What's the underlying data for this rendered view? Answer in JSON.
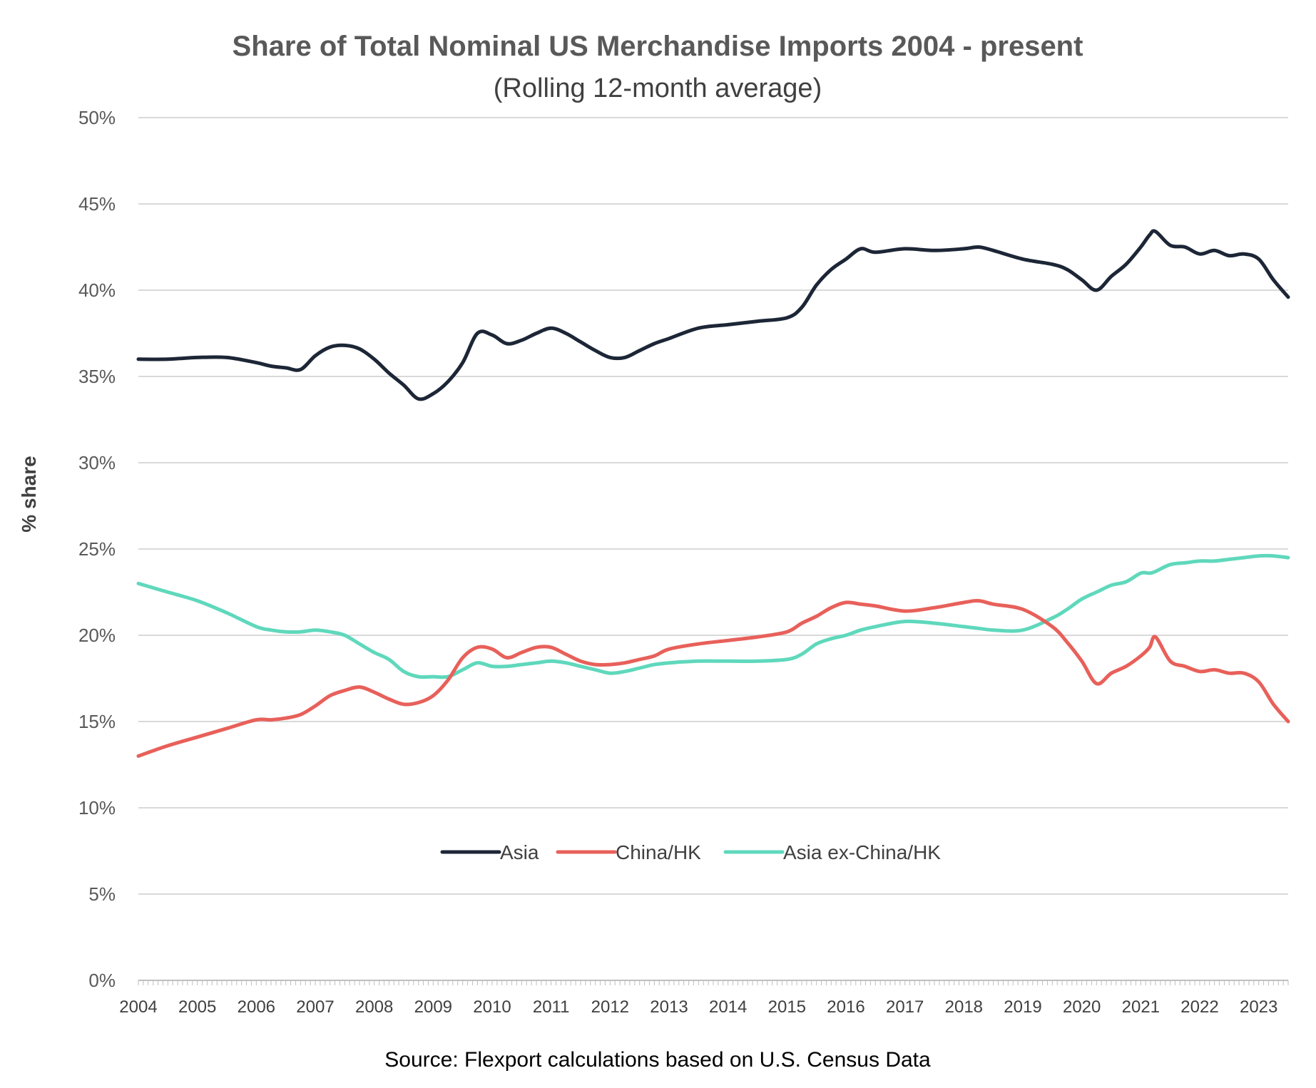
{
  "chart_data": {
    "type": "line",
    "title": "Share of Total Nominal US Merchandise Imports 2004 - present",
    "subtitle": "(Rolling 12-month average)",
    "xlabel": "",
    "ylabel": "% share",
    "source": "Source: Flexport calculations based on U.S. Census Data",
    "xlim": [
      2004.0,
      2023.5
    ],
    "ylim": [
      0,
      50
    ],
    "y_ticks": [
      0,
      5,
      10,
      15,
      20,
      25,
      30,
      35,
      40,
      45,
      50
    ],
    "y_tick_labels": [
      "0%",
      "5%",
      "10%",
      "15%",
      "20%",
      "25%",
      "30%",
      "35%",
      "40%",
      "45%",
      "50%"
    ],
    "x_ticks": [
      2004,
      2005,
      2006,
      2007,
      2008,
      2009,
      2010,
      2011,
      2012,
      2013,
      2014,
      2015,
      2016,
      2017,
      2018,
      2019,
      2020,
      2021,
      2022,
      2023
    ],
    "x_tick_labels": [
      "2004",
      "2005",
      "2006",
      "2007",
      "2008",
      "2009",
      "2010",
      "2011",
      "2012",
      "2013",
      "2014",
      "2015",
      "2016",
      "2017",
      "2018",
      "2019",
      "2020",
      "2021",
      "2022",
      "2023"
    ],
    "grid": true,
    "legend_position": "bottom-center",
    "series": [
      {
        "name": "Asia",
        "color": "#1c2636",
        "x": [
          2004.0,
          2004.5,
          2005.0,
          2005.5,
          2006.0,
          2006.25,
          2006.5,
          2006.75,
          2007.0,
          2007.25,
          2007.5,
          2007.75,
          2008.0,
          2008.25,
          2008.5,
          2008.75,
          2009.0,
          2009.25,
          2009.5,
          2009.75,
          2010.0,
          2010.25,
          2010.5,
          2010.75,
          2011.0,
          2011.25,
          2011.5,
          2011.75,
          2012.0,
          2012.25,
          2012.5,
          2012.75,
          2013.0,
          2013.5,
          2014.0,
          2014.5,
          2015.0,
          2015.25,
          2015.5,
          2015.75,
          2016.0,
          2016.25,
          2016.5,
          2017.0,
          2017.5,
          2018.0,
          2018.25,
          2018.5,
          2019.0,
          2019.5,
          2019.75,
          2020.0,
          2020.25,
          2020.5,
          2020.75,
          2021.0,
          2021.15,
          2021.25,
          2021.5,
          2021.75,
          2022.0,
          2022.25,
          2022.5,
          2022.75,
          2023.0,
          2023.25,
          2023.5
        ],
        "values": [
          36.0,
          36.0,
          36.1,
          36.1,
          35.8,
          35.6,
          35.5,
          35.4,
          36.2,
          36.7,
          36.8,
          36.6,
          36.0,
          35.2,
          34.5,
          33.7,
          34.0,
          34.7,
          35.8,
          37.5,
          37.4,
          36.9,
          37.1,
          37.5,
          37.8,
          37.5,
          37.0,
          36.5,
          36.1,
          36.1,
          36.5,
          36.9,
          37.2,
          37.8,
          38.0,
          38.2,
          38.4,
          39.0,
          40.3,
          41.2,
          41.8,
          42.4,
          42.2,
          42.4,
          42.3,
          42.4,
          42.5,
          42.3,
          41.8,
          41.5,
          41.2,
          40.6,
          40.0,
          40.8,
          41.5,
          42.5,
          43.2,
          43.4,
          42.6,
          42.5,
          42.1,
          42.3,
          42.0,
          42.1,
          41.8,
          40.6,
          39.6
        ]
      },
      {
        "name": "China/HK",
        "color": "#e8605a",
        "x": [
          2004.0,
          2004.5,
          2005.0,
          2005.5,
          2006.0,
          2006.25,
          2006.5,
          2006.75,
          2007.0,
          2007.25,
          2007.5,
          2007.75,
          2008.0,
          2008.25,
          2008.5,
          2008.75,
          2009.0,
          2009.25,
          2009.5,
          2009.75,
          2010.0,
          2010.25,
          2010.5,
          2010.75,
          2011.0,
          2011.25,
          2011.5,
          2011.75,
          2012.0,
          2012.25,
          2012.5,
          2012.75,
          2013.0,
          2013.5,
          2014.0,
          2014.5,
          2015.0,
          2015.25,
          2015.5,
          2015.75,
          2016.0,
          2016.25,
          2016.5,
          2017.0,
          2017.5,
          2018.0,
          2018.25,
          2018.5,
          2019.0,
          2019.5,
          2019.75,
          2020.0,
          2020.25,
          2020.5,
          2020.75,
          2021.0,
          2021.15,
          2021.25,
          2021.5,
          2021.75,
          2022.0,
          2022.25,
          2022.5,
          2022.75,
          2023.0,
          2023.25,
          2023.5
        ],
        "values": [
          13.0,
          13.6,
          14.1,
          14.6,
          15.1,
          15.1,
          15.2,
          15.4,
          15.9,
          16.5,
          16.8,
          17.0,
          16.7,
          16.3,
          16.0,
          16.1,
          16.5,
          17.4,
          18.7,
          19.3,
          19.2,
          18.7,
          19.0,
          19.3,
          19.3,
          18.9,
          18.5,
          18.3,
          18.3,
          18.4,
          18.6,
          18.8,
          19.2,
          19.5,
          19.7,
          19.9,
          20.2,
          20.7,
          21.1,
          21.6,
          21.9,
          21.8,
          21.7,
          21.4,
          21.6,
          21.9,
          22.0,
          21.8,
          21.5,
          20.5,
          19.6,
          18.5,
          17.2,
          17.8,
          18.2,
          18.8,
          19.3,
          19.9,
          18.5,
          18.2,
          17.9,
          18.0,
          17.8,
          17.8,
          17.3,
          16.0,
          15.0
        ]
      },
      {
        "name": "Asia ex-China/HK",
        "color": "#5fd8bc",
        "x": [
          2004.0,
          2004.5,
          2005.0,
          2005.5,
          2006.0,
          2006.25,
          2006.5,
          2006.75,
          2007.0,
          2007.25,
          2007.5,
          2007.75,
          2008.0,
          2008.25,
          2008.5,
          2008.75,
          2009.0,
          2009.25,
          2009.5,
          2009.75,
          2010.0,
          2010.25,
          2010.5,
          2010.75,
          2011.0,
          2011.25,
          2011.5,
          2011.75,
          2012.0,
          2012.25,
          2012.5,
          2012.75,
          2013.0,
          2013.5,
          2014.0,
          2014.5,
          2015.0,
          2015.25,
          2015.5,
          2015.75,
          2016.0,
          2016.25,
          2016.5,
          2017.0,
          2017.5,
          2018.0,
          2018.25,
          2018.5,
          2019.0,
          2019.5,
          2019.75,
          2020.0,
          2020.25,
          2020.5,
          2020.75,
          2021.0,
          2021.15,
          2021.25,
          2021.5,
          2021.75,
          2022.0,
          2022.25,
          2022.5,
          2022.75,
          2023.0,
          2023.25,
          2023.5
        ],
        "values": [
          23.0,
          22.5,
          22.0,
          21.3,
          20.5,
          20.3,
          20.2,
          20.2,
          20.3,
          20.2,
          20.0,
          19.5,
          19.0,
          18.6,
          17.9,
          17.6,
          17.6,
          17.6,
          18.0,
          18.4,
          18.2,
          18.2,
          18.3,
          18.4,
          18.5,
          18.4,
          18.2,
          18.0,
          17.8,
          17.9,
          18.1,
          18.3,
          18.4,
          18.5,
          18.5,
          18.5,
          18.6,
          18.9,
          19.5,
          19.8,
          20.0,
          20.3,
          20.5,
          20.8,
          20.7,
          20.5,
          20.4,
          20.3,
          20.3,
          21.0,
          21.5,
          22.1,
          22.5,
          22.9,
          23.1,
          23.6,
          23.6,
          23.7,
          24.1,
          24.2,
          24.3,
          24.3,
          24.4,
          24.5,
          24.6,
          24.6,
          24.5
        ]
      }
    ]
  }
}
